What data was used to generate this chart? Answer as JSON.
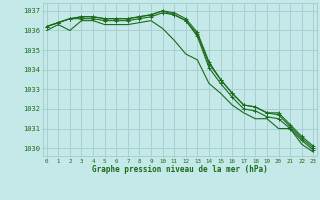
{
  "title": "Graphe pression niveau de la mer (hPa)",
  "background_color": "#c5e8e8",
  "grid_color": "#a8d0d0",
  "line_color": "#1a6b1a",
  "text_color": "#1a6b1a",
  "ylim": [
    1029.6,
    1037.4
  ],
  "xlim": [
    -0.3,
    23.3
  ],
  "yticks": [
    1030,
    1031,
    1032,
    1033,
    1034,
    1035,
    1036,
    1037
  ],
  "xticks": [
    0,
    1,
    2,
    3,
    4,
    5,
    6,
    7,
    8,
    9,
    10,
    11,
    12,
    13,
    14,
    15,
    16,
    17,
    18,
    19,
    20,
    21,
    22,
    23
  ],
  "series": [
    {
      "y": [
        1036.0,
        1036.3,
        1036.0,
        1036.5,
        1036.5,
        1036.3,
        1036.3,
        1036.3,
        1036.4,
        1036.5,
        1036.1,
        1035.5,
        1034.8,
        1034.5,
        1033.3,
        1032.8,
        1032.2,
        1031.8,
        1031.5,
        1031.5,
        1031.0,
        1031.0,
        1030.2,
        1029.8
      ],
      "marker": false
    },
    {
      "y": [
        1036.2,
        1036.4,
        1036.6,
        1036.6,
        1036.6,
        1036.5,
        1036.5,
        1036.5,
        1036.6,
        1036.7,
        1036.9,
        1036.8,
        1036.5,
        1035.7,
        1034.1,
        1033.3,
        1032.6,
        1032.0,
        1031.9,
        1031.6,
        1031.5,
        1031.0,
        1030.4,
        1029.9
      ],
      "marker": true
    },
    {
      "y": [
        1036.2,
        1036.4,
        1036.6,
        1036.7,
        1036.7,
        1036.6,
        1036.6,
        1036.6,
        1036.7,
        1036.8,
        1037.0,
        1036.8,
        1036.5,
        1035.8,
        1034.3,
        1033.5,
        1032.8,
        1032.2,
        1032.1,
        1031.8,
        1031.7,
        1031.1,
        1030.5,
        1030.0
      ],
      "marker": true
    },
    {
      "y": [
        1036.2,
        1036.4,
        1036.6,
        1036.7,
        1036.7,
        1036.6,
        1036.6,
        1036.6,
        1036.7,
        1036.8,
        1037.0,
        1036.9,
        1036.6,
        1035.9,
        1034.4,
        1033.5,
        1032.8,
        1032.2,
        1032.1,
        1031.8,
        1031.8,
        1031.2,
        1030.6,
        1030.1
      ],
      "marker": true
    }
  ]
}
